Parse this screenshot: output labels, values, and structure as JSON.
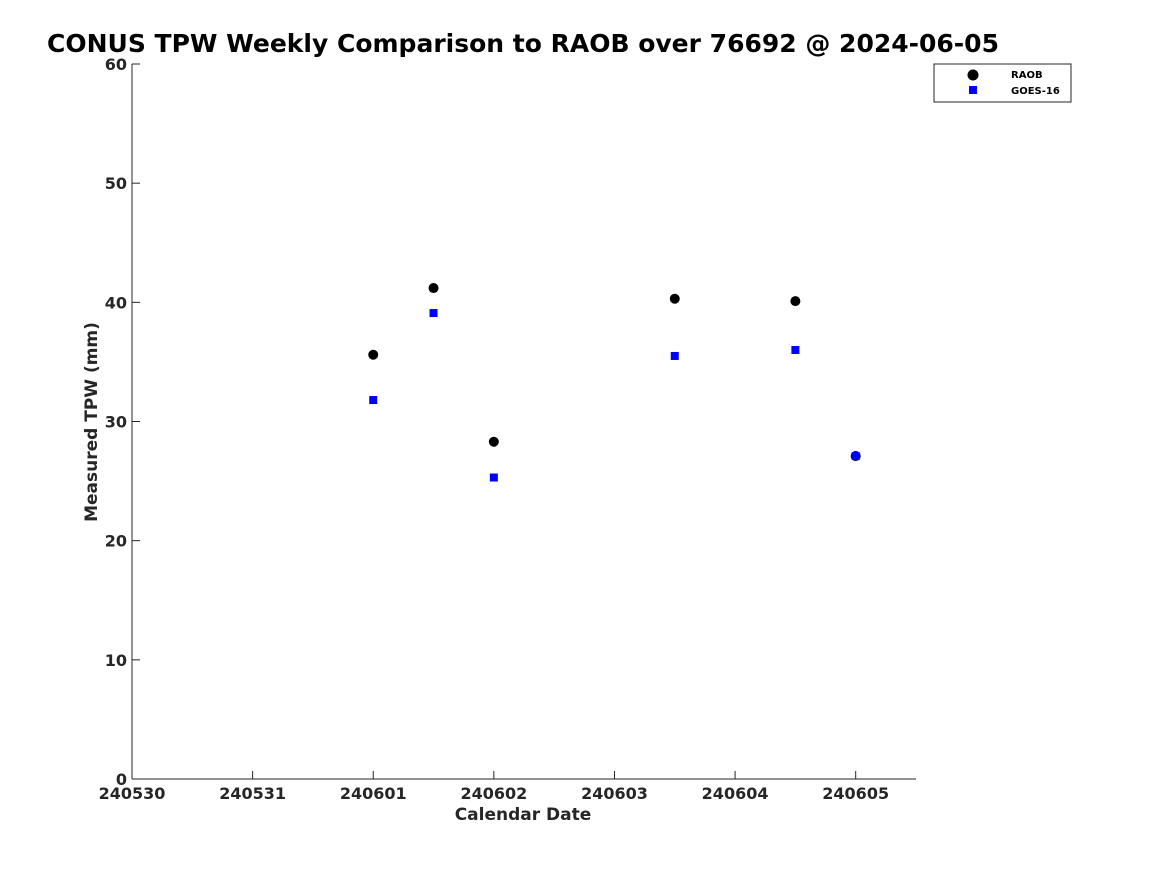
{
  "chart_data": {
    "type": "scatter",
    "title": "CONUS TPW Weekly Comparison to RAOB over 76692 @ 2024-06-05",
    "xlabel": "Calendar Date",
    "ylabel": "Measured TPW (mm)",
    "x_ticks": [
      "240530",
      "240531",
      "240601",
      "240602",
      "240603",
      "240604",
      "240605"
    ],
    "y_ticks": [
      "0",
      "10",
      "20",
      "30",
      "40",
      "50",
      "60"
    ],
    "xlim": [
      "2024-05-30 00:00",
      "2024-06-05 12:00"
    ],
    "ylim": [
      0,
      60
    ],
    "grid": false,
    "legend_position": "top-right",
    "series": [
      {
        "name": "RAOB",
        "marker": "circle",
        "color": "#000000",
        "points": [
          {
            "x": "2024-06-01 00:00",
            "y": 35.6
          },
          {
            "x": "2024-06-01 12:00",
            "y": 41.2
          },
          {
            "x": "2024-06-02 00:00",
            "y": 28.3
          },
          {
            "x": "2024-06-03 12:00",
            "y": 40.3
          },
          {
            "x": "2024-06-04 12:00",
            "y": 40.1
          },
          {
            "x": "2024-06-05 00:00",
            "y": 27.1
          }
        ]
      },
      {
        "name": "GOES-16",
        "marker": "square",
        "color": "#0000ff",
        "points": [
          {
            "x": "2024-06-01 00:00",
            "y": 31.8
          },
          {
            "x": "2024-06-01 12:00",
            "y": 39.1
          },
          {
            "x": "2024-06-02 00:00",
            "y": 25.3
          },
          {
            "x": "2024-06-03 12:00",
            "y": 35.5
          },
          {
            "x": "2024-06-04 12:00",
            "y": 36.0
          },
          {
            "x": "2024-06-05 00:00",
            "y": 27.1
          }
        ]
      }
    ]
  }
}
